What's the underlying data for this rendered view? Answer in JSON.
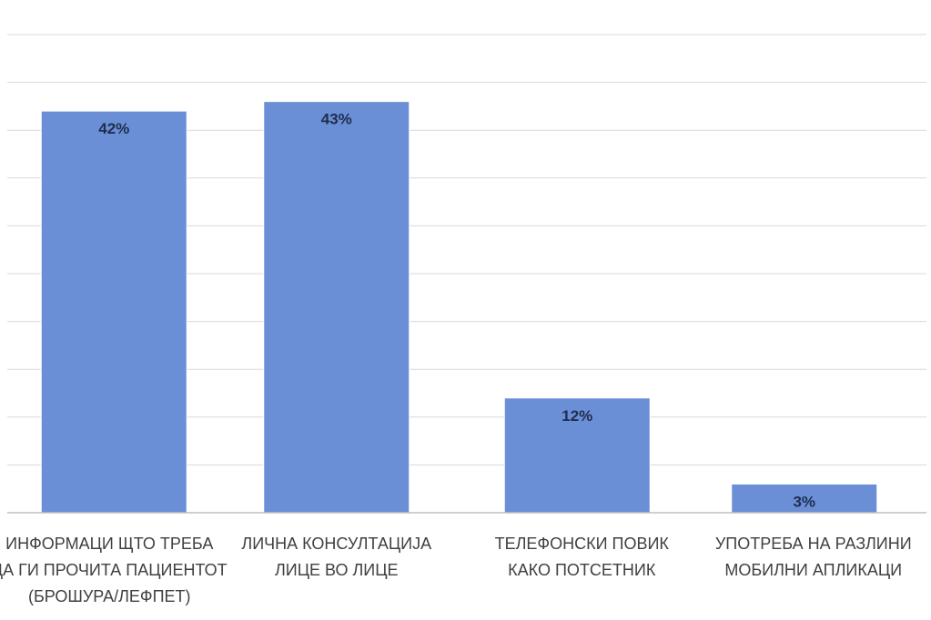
{
  "chart_data": {
    "type": "bar",
    "categories": [
      [
        "ИНФОРМАЦИ ЩТО ТРЕБА",
        "ДА ГИ ПРОЧИТА ПАЦИЕНТОТ",
        "(БРОШУРА/ЛЕФПЕТ)"
      ],
      [
        "ЛИЧНА КОНСУЛТАЦИЈА",
        "ЛИЦЕ ВО ЛИЦЕ"
      ],
      [
        "ТЕЛЕФОНСКИ ПОВИК",
        "КАКО ПОТСЕТНИК"
      ],
      [
        "УПОТРЕБА НА РАЗЛИНИ",
        "МОБИЛНИ АПЛИКАЦИ"
      ]
    ],
    "values": [
      42,
      43,
      12,
      3
    ],
    "data_labels": [
      "42%",
      "43%",
      "12%",
      "3%"
    ],
    "ylim": [
      0,
      50
    ],
    "gridlines": [
      0,
      5,
      10,
      15,
      20,
      25,
      30,
      35,
      40,
      45,
      50
    ],
    "grid": true,
    "colors": {
      "bar": "#4472c4",
      "bar_fill": "#6a8fd6",
      "grid": "#d9d9d9"
    }
  }
}
